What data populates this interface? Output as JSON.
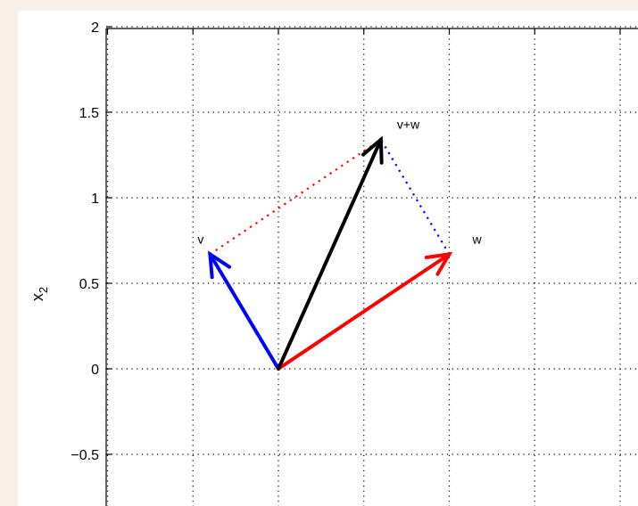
{
  "chart_data": {
    "type": "line",
    "title": "",
    "xlabel": "",
    "ylabel": "x",
    "ylabel_subscript": "2",
    "xlim": [
      -1,
      2
    ],
    "ylim": [
      -0.8,
      2
    ],
    "xticks": [
      -1,
      -0.5,
      0,
      0.5,
      1,
      1.5,
      2
    ],
    "yticks": [
      -0.5,
      0,
      0.5,
      1,
      1.5,
      2
    ],
    "ytick_labels": [
      "−0.5",
      "0",
      "0.5",
      "1",
      "1.5",
      "2"
    ],
    "grid": true,
    "vectors": [
      {
        "name": "v",
        "from": [
          0,
          0
        ],
        "to": [
          -0.4,
          0.67
        ],
        "color": "#0000ff",
        "label": "v"
      },
      {
        "name": "w",
        "from": [
          0,
          0
        ],
        "to": [
          1.0,
          0.67
        ],
        "color": "#ff0000",
        "label": "w"
      },
      {
        "name": "v+w",
        "from": [
          0,
          0
        ],
        "to": [
          0.6,
          1.34
        ],
        "color": "#000000",
        "label": "v+w"
      }
    ],
    "dotted_lines": [
      {
        "from": [
          -0.4,
          0.67
        ],
        "to": [
          0.6,
          1.34
        ],
        "color": "#ff0000"
      },
      {
        "from": [
          1.0,
          0.67
        ],
        "to": [
          0.6,
          1.34
        ],
        "color": "#0000ff"
      }
    ]
  }
}
